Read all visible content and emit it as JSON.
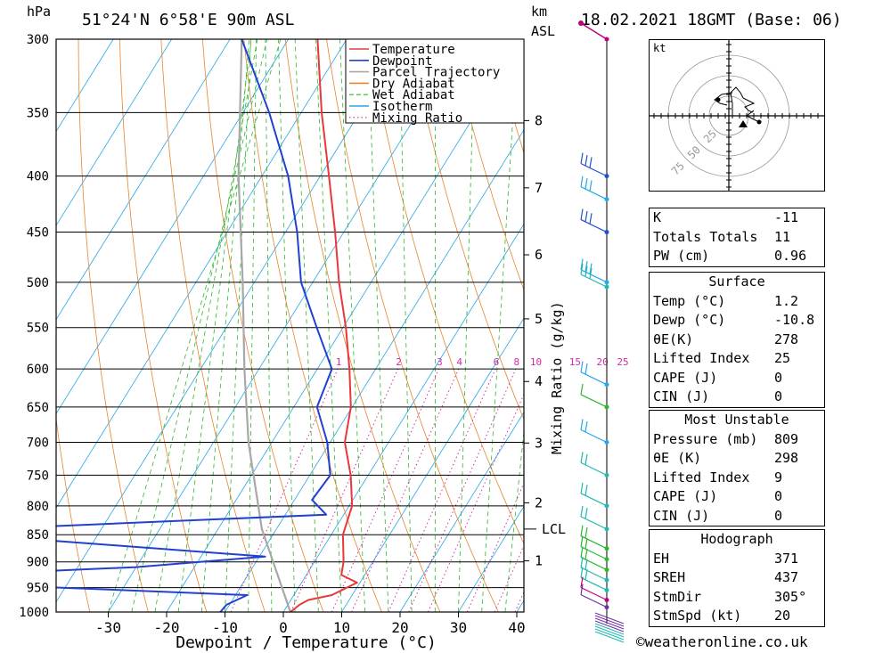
{
  "header": {
    "hpa_label": "hPa",
    "location": "51°24'N  6°58'E  90m  ASL",
    "km_label": "km",
    "asl_label": "ASL",
    "datetime": "18.02.2021  18GMT  (Base: 06)"
  },
  "chart_data": {
    "type": "skew-t",
    "xlabel": "Dewpoint / Temperature (°C)",
    "ylabel": "hPa",
    "x_ticks": [
      -30,
      -20,
      -10,
      0,
      10,
      20,
      30,
      40
    ],
    "x_tick_labels": [
      "-30",
      "-20",
      "-10",
      "0",
      "10",
      "20",
      "30",
      "40"
    ],
    "pressure_levels": [
      300,
      350,
      400,
      450,
      500,
      550,
      600,
      650,
      700,
      750,
      800,
      850,
      900,
      950,
      1000
    ],
    "pressure_labels": [
      "300",
      "350",
      "400",
      "450",
      "500",
      "550",
      "600",
      "650",
      "700",
      "750",
      "800",
      "850",
      "900",
      "950",
      "1000"
    ],
    "km_ticks": [
      {
        "label": "8",
        "p": 356
      },
      {
        "label": "7",
        "p": 410
      },
      {
        "label": "6",
        "p": 472
      },
      {
        "label": "5",
        "p": 540
      },
      {
        "label": "4",
        "p": 616
      },
      {
        "label": "3",
        "p": 701
      },
      {
        "label": "2",
        "p": 795
      },
      {
        "label": "1",
        "p": 898
      }
    ],
    "lcl_label": "LCL",
    "lcl_pressure": 840,
    "mixing_ratio_axis_label": "Mixing Ratio (g/kg)",
    "mixing_ratio_labels": [
      "1",
      "2",
      "3",
      "4",
      "6",
      "8",
      "10",
      "15",
      "20",
      "25"
    ],
    "legend": [
      {
        "name": "Temperature",
        "color": "#e8383b",
        "style": "solid"
      },
      {
        "name": "Dewpoint",
        "color": "#2040d0",
        "style": "solid"
      },
      {
        "name": "Parcel Trajectory",
        "color": "#a8a8a8",
        "style": "solid"
      },
      {
        "name": "Dry Adiabat",
        "color": "#e8842a",
        "style": "solid"
      },
      {
        "name": "Wet Adiabat",
        "color": "#2bb82b",
        "style": "dashed"
      },
      {
        "name": "Isotherm",
        "color": "#27a6e8",
        "style": "solid"
      },
      {
        "name": "Mixing Ratio",
        "color": "#d02fa8",
        "style": "dotted"
      }
    ],
    "temperature": [
      {
        "p": 1000,
        "t": 1.2
      },
      {
        "p": 985,
        "t": 2.0
      },
      {
        "p": 975,
        "t": 3.0
      },
      {
        "p": 965,
        "t": 6.5
      },
      {
        "p": 950,
        "t": 8.3
      },
      {
        "p": 940,
        "t": 9.5
      },
      {
        "p": 925,
        "t": 6.0
      },
      {
        "p": 900,
        "t": 5.0
      },
      {
        "p": 850,
        "t": 2.0
      },
      {
        "p": 800,
        "t": 0.5
      },
      {
        "p": 750,
        "t": -3.0
      },
      {
        "p": 700,
        "t": -7.5
      },
      {
        "p": 650,
        "t": -10.2
      },
      {
        "p": 600,
        "t": -14.5
      },
      {
        "p": 550,
        "t": -19.5
      },
      {
        "p": 500,
        "t": -25.5
      },
      {
        "p": 450,
        "t": -31.5
      },
      {
        "p": 400,
        "t": -38.5
      },
      {
        "p": 350,
        "t": -46.5
      },
      {
        "p": 300,
        "t": -55.0
      }
    ],
    "dewpoint": [
      {
        "p": 1000,
        "t": -10.8
      },
      {
        "p": 985,
        "t": -10.5
      },
      {
        "p": 965,
        "t": -8.0
      },
      {
        "p": 945,
        "t": -52.0
      },
      {
        "p": 925,
        "t": -60.0
      },
      {
        "p": 910,
        "t": -30.0
      },
      {
        "p": 890,
        "t": -9.0
      },
      {
        "p": 860,
        "t": -48.0
      },
      {
        "p": 840,
        "t": -60.0
      },
      {
        "p": 815,
        "t": -3.0
      },
      {
        "p": 790,
        "t": -7.0
      },
      {
        "p": 750,
        "t": -6.5
      },
      {
        "p": 700,
        "t": -10.5
      },
      {
        "p": 650,
        "t": -16.0
      },
      {
        "p": 600,
        "t": -17.5
      },
      {
        "p": 550,
        "t": -24.5
      },
      {
        "p": 500,
        "t": -32.0
      },
      {
        "p": 450,
        "t": -38.0
      },
      {
        "p": 400,
        "t": -45.5
      },
      {
        "p": 350,
        "t": -55.5
      },
      {
        "p": 300,
        "t": -68.0
      }
    ],
    "parcel": [
      {
        "p": 1000,
        "t": 1.2
      },
      {
        "p": 840,
        "t": -12.5
      },
      {
        "p": 700,
        "t": -24.0
      },
      {
        "p": 600,
        "t": -32.5
      },
      {
        "p": 500,
        "t": -42.0
      },
      {
        "p": 400,
        "t": -54.0
      },
      {
        "p": 300,
        "t": -68.0
      }
    ]
  },
  "hodograph": {
    "unit_label": "kt",
    "ring_labels": [
      "25",
      "50",
      "75"
    ]
  },
  "indices": [
    {
      "k": "K",
      "v": "-11"
    },
    {
      "k": "Totals Totals",
      "v": "11"
    },
    {
      "k": "PW (cm)",
      "v": "0.96"
    }
  ],
  "surface": {
    "title": "Surface",
    "rows": [
      {
        "k": "Temp (°C)",
        "v": "1.2"
      },
      {
        "k": "Dewp (°C)",
        "v": "-10.8"
      },
      {
        "k": "θE(K)",
        "v": "278"
      },
      {
        "k": "Lifted Index",
        "v": "25"
      },
      {
        "k": "CAPE (J)",
        "v": "0"
      },
      {
        "k": "CIN (J)",
        "v": "0"
      }
    ]
  },
  "most_unstable": {
    "title": "Most Unstable",
    "rows": [
      {
        "k": "Pressure (mb)",
        "v": "809"
      },
      {
        "k": "θE (K)",
        "v": "298"
      },
      {
        "k": "Lifted Index",
        "v": "9"
      },
      {
        "k": "CAPE (J)",
        "v": "0"
      },
      {
        "k": "CIN (J)",
        "v": "0"
      }
    ]
  },
  "hodograph_table": {
    "title": "Hodograph",
    "rows": [
      {
        "k": "EH",
        "v": "371"
      },
      {
        "k": "SREH",
        "v": "437"
      },
      {
        "k": "StmDir",
        "v": "305°"
      },
      {
        "k": "StmSpd (kt)",
        "v": "20"
      }
    ]
  },
  "credit": "©weatheronline.co.uk"
}
